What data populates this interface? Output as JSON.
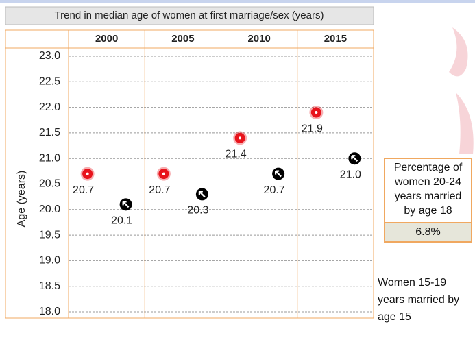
{
  "chart_data": {
    "type": "dot",
    "title": "Trend in median age of women at first marriage/sex (years)",
    "y_label": "Age (years)",
    "categories": [
      "2000",
      "2005",
      "2010",
      "2015"
    ],
    "series": [
      {
        "color": "#e8141c",
        "marker": "circle",
        "values": [
          20.7,
          20.7,
          21.4,
          21.9
        ]
      },
      {
        "color": "#000000",
        "marker": "arrow",
        "values": [
          20.1,
          20.3,
          20.7,
          21.0
        ],
        "value_labels": [
          "20.1",
          "20.3",
          "20.7",
          "21.0"
        ]
      }
    ],
    "ylim": [
      18,
      23
    ],
    "yticks": [
      {
        "value": 18,
        "label": "18.0"
      },
      18.5,
      {
        "value": 19,
        "label": "19.0"
      },
      19.5,
      {
        "value": 20,
        "label": "20.0"
      },
      20.5,
      {
        "value": 21,
        "label": "21.0"
      },
      21.5,
      {
        "value": 22,
        "label": "22.0"
      },
      22.5,
      {
        "value": 23,
        "label": "23.0"
      }
    ],
    "grid": true
  },
  "sidebar": {
    "box_title": "Percentage of women 20-24 years married by age 18",
    "box_value": "6.8%",
    "note": "Women 15-19 years married by age 15"
  }
}
